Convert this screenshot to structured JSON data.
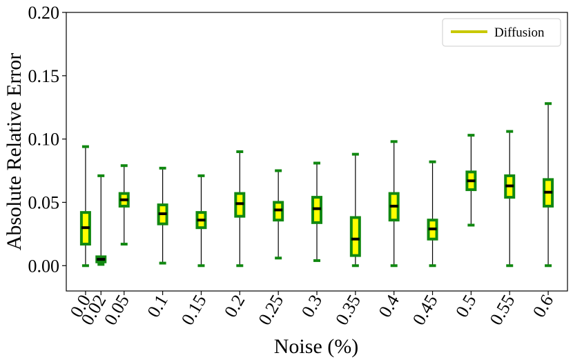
{
  "chart_data": {
    "type": "box",
    "xlabel": "Noise (%)",
    "ylabel": "Absolute Relative Error",
    "ylim": [
      -0.02,
      0.2
    ],
    "yticks": [
      "0.00",
      "0.05",
      "0.10",
      "0.15",
      "0.20"
    ],
    "ytick_values": [
      0.0,
      0.05,
      0.1,
      0.15,
      0.2
    ],
    "legend": {
      "label": "Diffusion",
      "color": "#c8c800",
      "placement": "top-right"
    },
    "colors": {
      "box_fill": "#ffff00",
      "box_edge": "#118811",
      "median": "#000000",
      "whisker": "#000000",
      "cap": "#118811"
    },
    "categories": [
      "0.0",
      "0.02",
      "0.05",
      "0.1",
      "0.15",
      "0.2",
      "0.25",
      "0.3",
      "0.35",
      "0.4",
      "0.45",
      "0.5",
      "0.55",
      "0.6"
    ],
    "x": [
      0.0,
      0.02,
      0.05,
      0.1,
      0.15,
      0.2,
      0.25,
      0.3,
      0.35,
      0.4,
      0.45,
      0.5,
      0.55,
      0.6
    ],
    "boxes": [
      {
        "label": "0.0",
        "whislo": 0.0,
        "q1": 0.017,
        "med": 0.03,
        "q3": 0.042,
        "whishi": 0.094
      },
      {
        "label": "0.02",
        "whislo": 0.001,
        "q1": 0.003,
        "med": 0.005,
        "q3": 0.007,
        "whishi": 0.071
      },
      {
        "label": "0.05",
        "whislo": 0.017,
        "q1": 0.047,
        "med": 0.052,
        "q3": 0.057,
        "whishi": 0.079
      },
      {
        "label": "0.1",
        "whislo": 0.002,
        "q1": 0.033,
        "med": 0.041,
        "q3": 0.048,
        "whishi": 0.077
      },
      {
        "label": "0.15",
        "whislo": 0.0,
        "q1": 0.03,
        "med": 0.036,
        "q3": 0.042,
        "whishi": 0.071
      },
      {
        "label": "0.2",
        "whislo": 0.0,
        "q1": 0.039,
        "med": 0.049,
        "q3": 0.057,
        "whishi": 0.09
      },
      {
        "label": "0.25",
        "whislo": 0.006,
        "q1": 0.036,
        "med": 0.044,
        "q3": 0.05,
        "whishi": 0.075
      },
      {
        "label": "0.3",
        "whislo": 0.004,
        "q1": 0.034,
        "med": 0.045,
        "q3": 0.054,
        "whishi": 0.081
      },
      {
        "label": "0.35",
        "whislo": 0.0,
        "q1": 0.008,
        "med": 0.021,
        "q3": 0.038,
        "whishi": 0.088
      },
      {
        "label": "0.4",
        "whislo": 0.0,
        "q1": 0.036,
        "med": 0.047,
        "q3": 0.057,
        "whishi": 0.098
      },
      {
        "label": "0.45",
        "whislo": 0.0,
        "q1": 0.021,
        "med": 0.029,
        "q3": 0.036,
        "whishi": 0.082
      },
      {
        "label": "0.5",
        "whislo": 0.032,
        "q1": 0.06,
        "med": 0.067,
        "q3": 0.074,
        "whishi": 0.103
      },
      {
        "label": "0.55",
        "whislo": 0.0,
        "q1": 0.054,
        "med": 0.063,
        "q3": 0.071,
        "whishi": 0.106
      },
      {
        "label": "0.6",
        "whislo": 0.0,
        "q1": 0.047,
        "med": 0.058,
        "q3": 0.068,
        "whishi": 0.128
      }
    ]
  }
}
